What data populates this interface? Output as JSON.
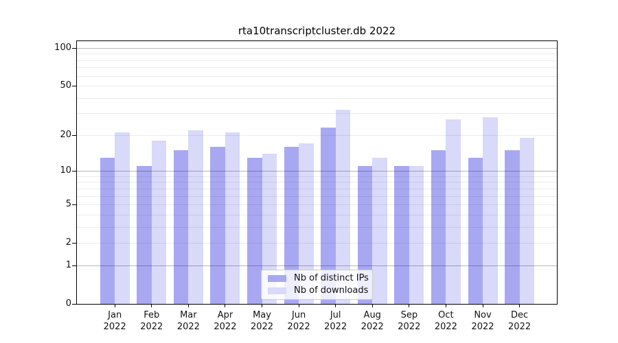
{
  "chart_data": {
    "type": "bar",
    "title": "rta10transcriptcluster.db 2022",
    "categories": [
      "Jan 2022",
      "Feb 2022",
      "Mar 2022",
      "Apr 2022",
      "May 2022",
      "Jun 2022",
      "Jul 2022",
      "Aug 2022",
      "Sep 2022",
      "Oct 2022",
      "Nov 2022",
      "Dec 2022"
    ],
    "series": [
      {
        "name": "Nb of distinct IPs",
        "color": "#a8a8f2",
        "values": [
          13,
          11,
          15,
          16,
          13,
          16,
          23,
          11,
          11,
          15,
          13,
          15
        ]
      },
      {
        "name": "Nb of downloads",
        "color": "#d9d9f9",
        "values": [
          21,
          18,
          22,
          21,
          14,
          17,
          32,
          13,
          11,
          27,
          28,
          19
        ]
      }
    ],
    "xlabel": "",
    "ylabel": "",
    "yscale": "log1p",
    "ylim": [
      0,
      113
    ],
    "yticks": [
      100,
      50,
      20,
      10,
      5,
      2,
      1,
      0
    ],
    "major_gridlines": [
      1,
      10,
      100
    ],
    "minor_gridlines": [
      2,
      3,
      4,
      5,
      6,
      7,
      8,
      9,
      20,
      30,
      40,
      50,
      60,
      70,
      80,
      90
    ],
    "grid": true,
    "legend_position": "lower center"
  }
}
